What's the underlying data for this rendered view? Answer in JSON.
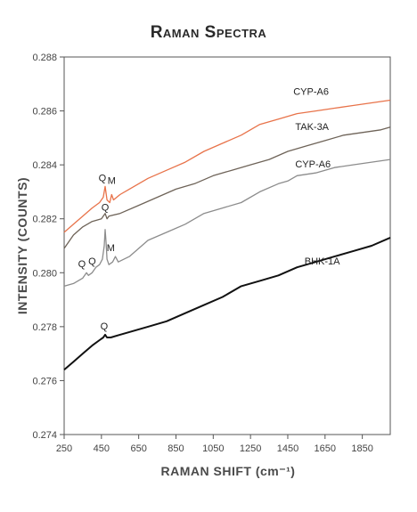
{
  "chart_data": {
    "type": "line",
    "title": "Raman Spectra",
    "xlabel": "RAMAN SHIFT (cm⁻¹)",
    "ylabel": "INTENSITY (COUNTS)",
    "xlim": [
      250,
      2000
    ],
    "ylim": [
      0.274,
      0.288
    ],
    "xticks": [
      250,
      450,
      650,
      850,
      1050,
      1250,
      1450,
      1650,
      1850
    ],
    "yticks": [
      0.274,
      0.276,
      0.278,
      0.28,
      0.282,
      0.284,
      0.286,
      0.288
    ],
    "ytick_labels": [
      "0.274",
      "0.276",
      "0.278",
      "0.280",
      "0.282",
      "0.284",
      "0.286",
      "0.288"
    ],
    "grid": false,
    "series": [
      {
        "name": "CYP-A6",
        "color": "#e8734a",
        "x": [
          250,
          300,
          350,
          400,
          440,
          460,
          470,
          480,
          495,
          505,
          515,
          550,
          600,
          700,
          800,
          900,
          1000,
          1100,
          1200,
          1300,
          1400,
          1500,
          1600,
          1700,
          1800,
          1900,
          2000
        ],
        "y": [
          0.2815,
          0.2818,
          0.2821,
          0.2824,
          0.2826,
          0.2828,
          0.2832,
          0.2827,
          0.2826,
          0.2829,
          0.2827,
          0.2829,
          0.2831,
          0.2835,
          0.2838,
          0.2841,
          0.2845,
          0.2848,
          0.2851,
          0.2855,
          0.2857,
          0.2859,
          0.286,
          0.2861,
          0.2862,
          0.2863,
          0.2864
        ]
      },
      {
        "name": "TAK-3A",
        "color": "#6e6358",
        "x": [
          250,
          300,
          350,
          400,
          450,
          470,
          480,
          490,
          550,
          650,
          750,
          850,
          950,
          1050,
          1150,
          1250,
          1350,
          1450,
          1550,
          1650,
          1750,
          1850,
          1950,
          2000
        ],
        "y": [
          0.2809,
          0.2814,
          0.2817,
          0.2819,
          0.282,
          0.2822,
          0.282,
          0.2821,
          0.2822,
          0.2825,
          0.2828,
          0.2831,
          0.2833,
          0.2836,
          0.2838,
          0.284,
          0.2842,
          0.2845,
          0.2847,
          0.2849,
          0.2851,
          0.2852,
          0.2853,
          0.2854
        ]
      },
      {
        "name": "CYP-A6",
        "color": "#8c8c8c",
        "x": [
          250,
          300,
          350,
          370,
          380,
          400,
          420,
          440,
          455,
          465,
          470,
          475,
          480,
          490,
          510,
          525,
          540,
          600,
          700,
          800,
          900,
          1000,
          1100,
          1200,
          1300,
          1400,
          1450,
          1500,
          1600,
          1700,
          1800,
          1900,
          2000
        ],
        "y": [
          0.2795,
          0.2796,
          0.2798,
          0.28,
          0.2799,
          0.28,
          0.2802,
          0.2803,
          0.2805,
          0.281,
          0.2816,
          0.2811,
          0.2805,
          0.2803,
          0.2804,
          0.2806,
          0.2804,
          0.2806,
          0.2812,
          0.2815,
          0.2818,
          0.2822,
          0.2824,
          0.2826,
          0.283,
          0.2833,
          0.2834,
          0.2836,
          0.2837,
          0.2839,
          0.284,
          0.2841,
          0.2842
        ]
      },
      {
        "name": "BHK-1A",
        "color": "#111111",
        "x": [
          250,
          300,
          350,
          400,
          440,
          460,
          470,
          480,
          500,
          550,
          600,
          700,
          800,
          900,
          1000,
          1100,
          1200,
          1300,
          1400,
          1500,
          1600,
          1700,
          1800,
          1900,
          2000
        ],
        "y": [
          0.2764,
          0.2767,
          0.277,
          0.2773,
          0.2775,
          0.2776,
          0.2777,
          0.2776,
          0.2776,
          0.2777,
          0.2778,
          0.278,
          0.2782,
          0.2785,
          0.2788,
          0.2791,
          0.2795,
          0.2797,
          0.2799,
          0.2802,
          0.2804,
          0.2806,
          0.2808,
          0.281,
          0.2813
        ]
      }
    ],
    "series_labels": [
      {
        "text": "CYP-A6",
        "x": 1480,
        "y": 0.2866
      },
      {
        "text": "TAK-3A",
        "x": 1490,
        "y": 0.2853
      },
      {
        "text": "CYP-A6",
        "x": 1490,
        "y": 0.2839
      },
      {
        "text": "BHK-1A",
        "x": 1540,
        "y": 0.2803
      }
    ],
    "annotations": [
      {
        "text": "Q",
        "x": 455,
        "y": 0.2834
      },
      {
        "text": "M",
        "x": 505,
        "y": 0.2833
      },
      {
        "text": "Q",
        "x": 470,
        "y": 0.2823
      },
      {
        "text": "Q",
        "x": 345,
        "y": 0.2802
      },
      {
        "text": "Q",
        "x": 400,
        "y": 0.2803
      },
      {
        "text": "M",
        "x": 500,
        "y": 0.2808
      },
      {
        "text": "Q",
        "x": 465,
        "y": 0.2779
      }
    ]
  }
}
